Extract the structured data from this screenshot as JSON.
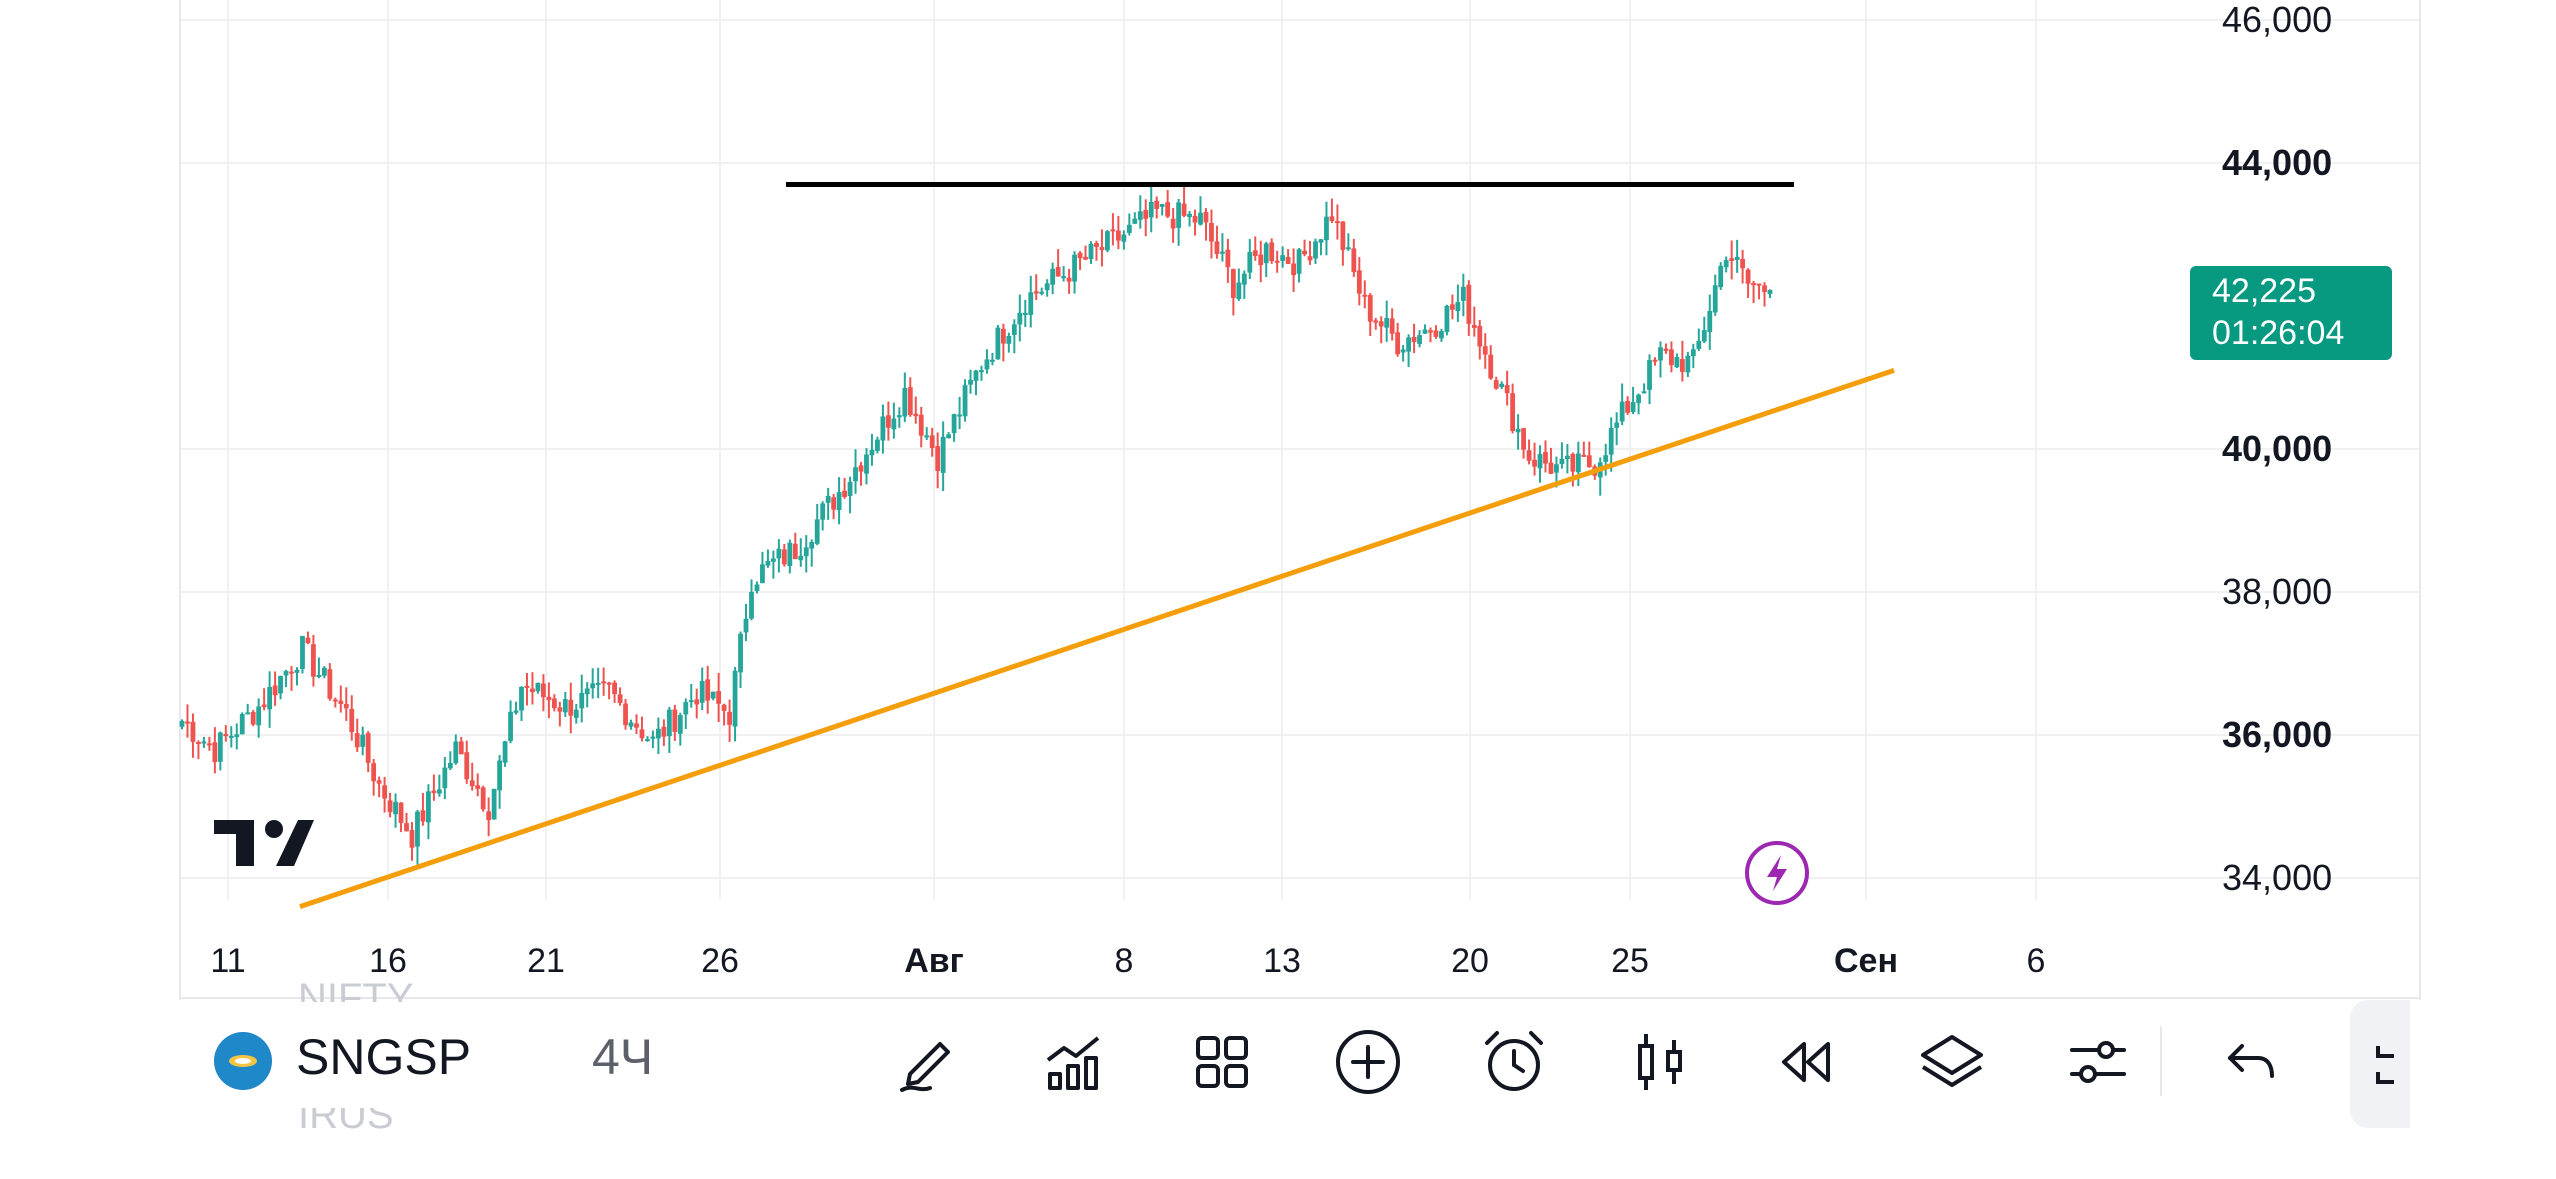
{
  "chart_data": {
    "type": "candlestick",
    "y_axis": {
      "min": 33500,
      "max": 46200,
      "ticks": [
        {
          "value": 46000,
          "label": "46,000",
          "bold": false
        },
        {
          "value": 44000,
          "label": "44,000",
          "bold": true
        },
        {
          "value": 40000,
          "label": "40,000",
          "bold": true
        },
        {
          "value": 38000,
          "label": "38,000",
          "bold": false
        },
        {
          "value": 36000,
          "label": "36,000",
          "bold": true
        },
        {
          "value": 34000,
          "label": "34,000",
          "bold": false
        }
      ]
    },
    "x_axis": {
      "ticks": [
        {
          "label": "11",
          "bold": false
        },
        {
          "label": "16",
          "bold": false
        },
        {
          "label": "21",
          "bold": false
        },
        {
          "label": "26",
          "bold": false
        },
        {
          "label": "Авг",
          "bold": true
        },
        {
          "label": "8",
          "bold": false
        },
        {
          "label": "13",
          "bold": false
        },
        {
          "label": "20",
          "bold": false
        },
        {
          "label": "25",
          "bold": false
        },
        {
          "label": "Сен",
          "bold": true
        },
        {
          "label": "6",
          "bold": false
        }
      ]
    },
    "last_price": {
      "value": 42225,
      "label": "42,225",
      "countdown": "01:26:04"
    },
    "anchors": [
      {
        "i": 0,
        "p": 36200
      },
      {
        "i": 6,
        "p": 35800
      },
      {
        "i": 14,
        "p": 36400
      },
      {
        "i": 22,
        "p": 37200
      },
      {
        "i": 30,
        "p": 36300
      },
      {
        "i": 36,
        "p": 35300
      },
      {
        "i": 42,
        "p": 34600
      },
      {
        "i": 50,
        "p": 35800
      },
      {
        "i": 56,
        "p": 35000
      },
      {
        "i": 62,
        "p": 36700
      },
      {
        "i": 70,
        "p": 36400
      },
      {
        "i": 78,
        "p": 36600
      },
      {
        "i": 86,
        "p": 35900
      },
      {
        "i": 94,
        "p": 36600
      },
      {
        "i": 100,
        "p": 36300
      },
      {
        "i": 104,
        "p": 38200
      },
      {
        "i": 112,
        "p": 38600
      },
      {
        "i": 120,
        "p": 39400
      },
      {
        "i": 126,
        "p": 40100
      },
      {
        "i": 132,
        "p": 40800
      },
      {
        "i": 138,
        "p": 39900
      },
      {
        "i": 146,
        "p": 41200
      },
      {
        "i": 154,
        "p": 42100
      },
      {
        "i": 162,
        "p": 42500
      },
      {
        "i": 170,
        "p": 42900
      },
      {
        "i": 178,
        "p": 43300
      },
      {
        "i": 186,
        "p": 43200
      },
      {
        "i": 192,
        "p": 42300
      },
      {
        "i": 198,
        "p": 42800
      },
      {
        "i": 204,
        "p": 42600
      },
      {
        "i": 210,
        "p": 43300
      },
      {
        "i": 216,
        "p": 42000
      },
      {
        "i": 222,
        "p": 41500
      },
      {
        "i": 228,
        "p": 41700
      },
      {
        "i": 234,
        "p": 42100
      },
      {
        "i": 240,
        "p": 41000
      },
      {
        "i": 246,
        "p": 39900
      },
      {
        "i": 252,
        "p": 39700
      },
      {
        "i": 258,
        "p": 39800
      },
      {
        "i": 264,
        "p": 40600
      },
      {
        "i": 270,
        "p": 41300
      },
      {
        "i": 276,
        "p": 41200
      },
      {
        "i": 282,
        "p": 42800
      },
      {
        "i": 286,
        "p": 42300
      },
      {
        "i": 290,
        "p": 42225
      }
    ],
    "drawings": [
      {
        "type": "horizontal-segment",
        "price": 43700,
        "color": "#000000"
      },
      {
        "type": "trend-line",
        "from_price": 33600,
        "to_price": 41100,
        "color": "#f59e0b"
      }
    ],
    "colors": {
      "up": "#26a69a",
      "down": "#ef5350",
      "grid": "#f0f1f3",
      "badge": "#089981"
    }
  },
  "toolbar": {
    "symbol": "SNGSP",
    "interval": "4Ч",
    "ghost_top": "NIFTY",
    "ghost_bottom": "IRUS",
    "tools": [
      {
        "name": "draw-icon"
      },
      {
        "name": "indicators-icon"
      },
      {
        "name": "layouts-icon"
      },
      {
        "name": "add-icon"
      },
      {
        "name": "alert-icon"
      },
      {
        "name": "candles-icon"
      },
      {
        "name": "replay-icon"
      },
      {
        "name": "layers-icon"
      },
      {
        "name": "settings-icon"
      },
      {
        "name": "undo-icon"
      }
    ]
  }
}
